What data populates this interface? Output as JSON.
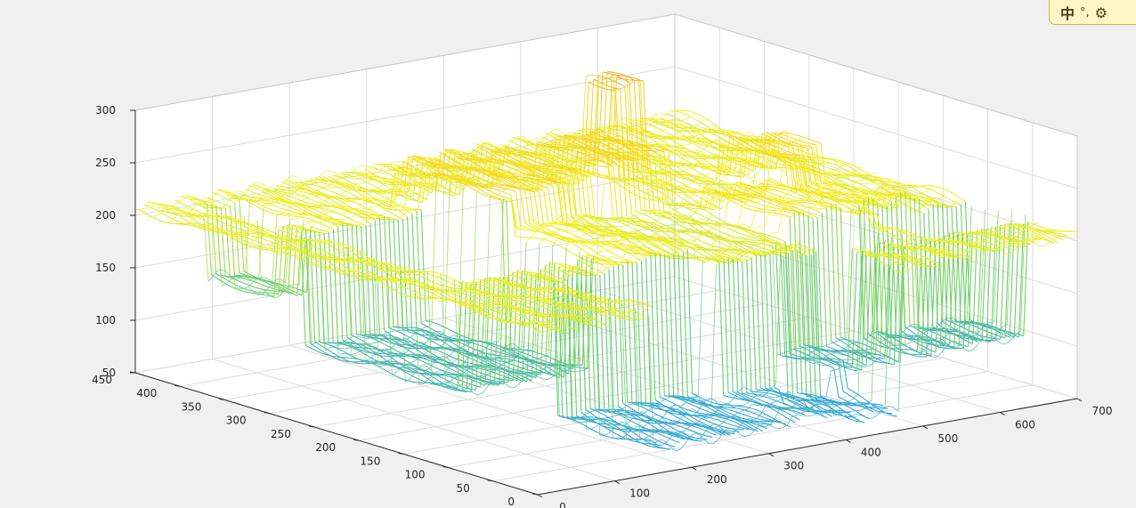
{
  "ime_toolbar": {
    "mode_label": "中",
    "punct_label": "°,",
    "settings_icon": "gear-icon"
  },
  "chart_data": {
    "type": "surface",
    "title": "",
    "xlabel": "",
    "ylabel": "",
    "zlabel": "",
    "xlim": [
      0,
      700
    ],
    "ylim": [
      0,
      450
    ],
    "zlim": [
      50,
      300
    ],
    "x_ticks": [
      0,
      100,
      200,
      300,
      400,
      500,
      600,
      700
    ],
    "y_ticks": [
      0,
      50,
      100,
      150,
      200,
      250,
      300,
      350,
      400,
      450
    ],
    "z_ticks": [
      50,
      100,
      150,
      200,
      250,
      300
    ],
    "grid": true,
    "colormap": "parula",
    "colors": {
      "low": "#2ea1e6",
      "mid": "#6fcf6a",
      "high": "#f5f020",
      "warm": "#f2b23a"
    },
    "baseline_height": 205,
    "plateaus": [
      {
        "x": [
          0,
          70
        ],
        "y": [
          300,
          450
        ],
        "z": 205
      },
      {
        "x": [
          60,
          110
        ],
        "y": [
          350,
          420
        ],
        "z": 140
      },
      {
        "x": [
          70,
          240
        ],
        "y": [
          150,
          320
        ],
        "z": 100
      },
      {
        "x": [
          230,
          380
        ],
        "y": [
          240,
          360
        ],
        "z": 240
      },
      {
        "x": [
          250,
          330
        ],
        "y": [
          100,
          240
        ],
        "z": 210
      },
      {
        "x": [
          330,
          480
        ],
        "y": [
          100,
          260
        ],
        "z": 200
      },
      {
        "x": [
          380,
          460
        ],
        "y": [
          250,
          330
        ],
        "z": 250
      },
      {
        "x": [
          480,
          520
        ],
        "y": [
          330,
          360
        ],
        "z": 290
      },
      {
        "x": [
          470,
          640
        ],
        "y": [
          100,
          220
        ],
        "z": 220
      },
      {
        "x": [
          560,
          640
        ],
        "y": [
          200,
          280
        ],
        "z": 240
      },
      {
        "x": [
          590,
          700
        ],
        "y": [
          150,
          230
        ],
        "z": 205
      }
    ],
    "wells": [
      {
        "x": [
          150,
          330
        ],
        "y": [
          0,
          110
        ],
        "z": 75
      },
      {
        "x": [
          330,
          400
        ],
        "y": [
          0,
          80
        ],
        "z": 80
      },
      {
        "x": [
          400,
          470
        ],
        "y": [
          0,
          70
        ],
        "z": 70
      },
      {
        "x": [
          450,
          540
        ],
        "y": [
          60,
          120
        ],
        "z": 95
      },
      {
        "x": [
          560,
          700
        ],
        "y": [
          60,
          120
        ],
        "z": 95
      }
    ]
  }
}
